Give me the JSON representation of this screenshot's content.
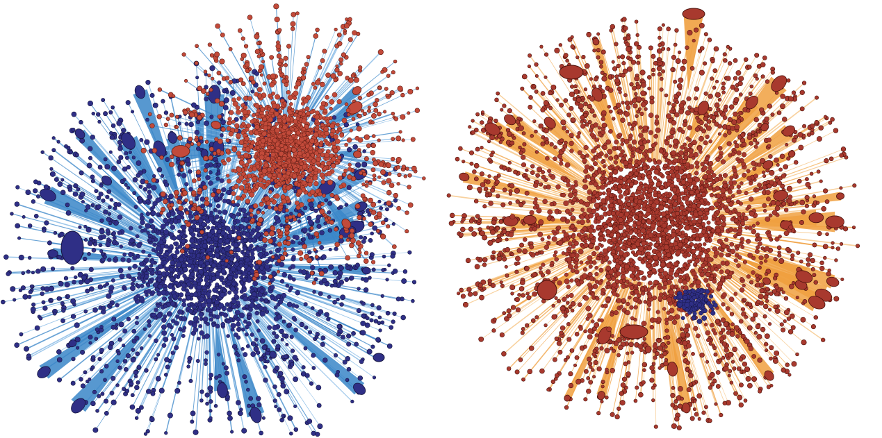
{
  "figure": {
    "panels": [
      {
        "id": "left",
        "description_visible_text": "",
        "colors": {
          "edge": "#3a86c8",
          "edge_light": "#7fb6e4",
          "community_a_fill": "#2f2f86",
          "community_a_stroke": "#15153f",
          "community_b_fill": "#c24a3a",
          "community_b_stroke": "#5a1a12"
        },
        "communities": [
          {
            "name": "",
            "color_key": "community_a"
          },
          {
            "name": "",
            "color_key": "community_b"
          }
        ]
      },
      {
        "id": "right",
        "description_visible_text": "",
        "colors": {
          "edge": "#f0a040",
          "edge_light": "#f6c27d",
          "community_a_fill": "#a8392e",
          "community_a_stroke": "#4a120c",
          "community_b_fill": "#2f2f86",
          "community_b_stroke": "#15153f"
        },
        "communities": [
          {
            "name": "",
            "color_key": "community_a"
          },
          {
            "name": "",
            "color_key": "community_b"
          }
        ]
      }
    ]
  }
}
